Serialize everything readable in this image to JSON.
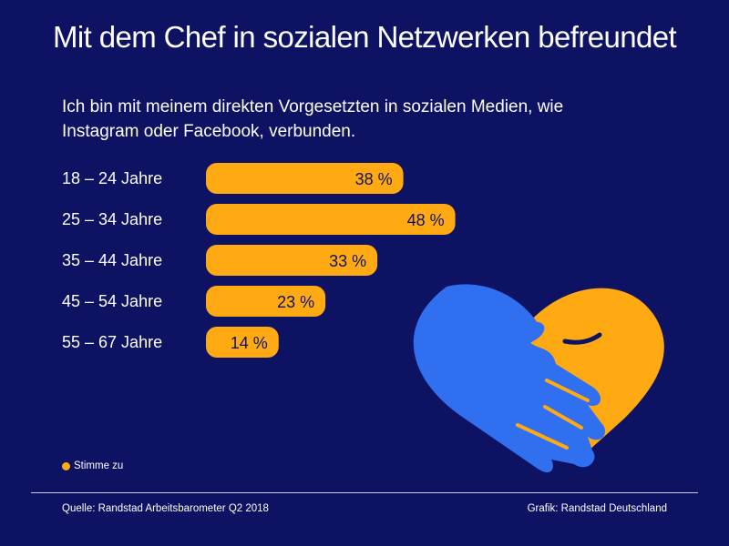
{
  "title": "Mit dem Chef in sozialen Netzwerken befreundet",
  "subtitle": "Ich bin mit meinem direkten Vorgesetzten in sozialen Medien, wie Instagram oder Facebook, verbunden.",
  "legend": {
    "label": "Stimme zu"
  },
  "footer": {
    "source": "Quelle: Randstad Arbeitsbarometer Q2 2018",
    "credit": "Grafik: Randstad Deutschland"
  },
  "colors": {
    "background": "#0e1263",
    "bar": "#ffa913",
    "hand_blue": "#2f6ff0",
    "text": "#ffffff"
  },
  "chart_data": {
    "type": "bar",
    "orientation": "horizontal",
    "categories": [
      "18 – 24 Jahre",
      "25 – 34 Jahre",
      "35 – 44 Jahre",
      "45 – 54 Jahre",
      "55 – 67 Jahre"
    ],
    "series": [
      {
        "name": "Stimme zu",
        "values": [
          38,
          48,
          33,
          23,
          14
        ]
      }
    ],
    "value_labels": [
      "38 %",
      "48 %",
      "33 %",
      "23 %",
      "14 %"
    ],
    "unit": "%",
    "grid": false,
    "legend_position": "bottom-left"
  }
}
